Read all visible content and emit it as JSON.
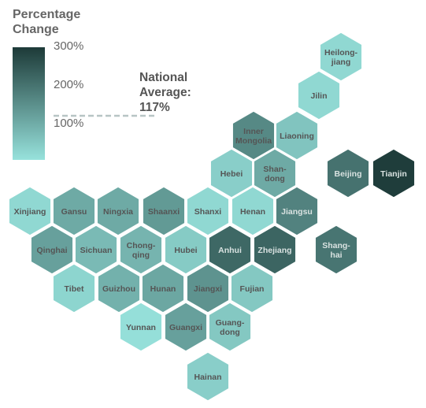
{
  "chart_data": {
    "type": "hexagonal tile map",
    "legend": {
      "title_lines": [
        "Percentage",
        "Change"
      ],
      "ticks": [
        "300%",
        "200%",
        "100%"
      ],
      "tick_values": [
        300,
        200,
        100
      ],
      "scale_min": 65,
      "scale_max": 320,
      "color_low": "#97e2dc",
      "color_high": "#1d3a38"
    },
    "national_average": {
      "label_lines": [
        "National",
        "Average:",
        "117%"
      ],
      "value": 117
    },
    "tiles": [
      {
        "label": [
          "Heilong-",
          "jiang"
        ],
        "name": "Heilongjiang",
        "value": 80
      },
      {
        "label": [
          "Jilin"
        ],
        "name": "Jilin",
        "value": 80
      },
      {
        "label": [
          "Inner",
          "Mongolia"
        ],
        "name": "Inner Mongolia",
        "value": 200
      },
      {
        "label": [
          "Liaoning"
        ],
        "name": "Liaoning",
        "value": 110
      },
      {
        "label": [
          "Hebei"
        ],
        "name": "Hebei",
        "value": 95
      },
      {
        "label": [
          "Shan-",
          "dong"
        ],
        "name": "Shandong",
        "value": 150
      },
      {
        "label": [
          "Beijing"
        ],
        "name": "Beijing",
        "value": 235
      },
      {
        "label": [
          "Tianjin"
        ],
        "name": "Tianjin",
        "value": 315
      },
      {
        "label": [
          "Xinjiang"
        ],
        "name": "Xinjiang",
        "value": 80
      },
      {
        "label": [
          "Gansu"
        ],
        "name": "Gansu",
        "value": 150
      },
      {
        "label": [
          "Ningxia"
        ],
        "name": "Ningxia",
        "value": 150
      },
      {
        "label": [
          "Shaanxi"
        ],
        "name": "Shaanxi",
        "value": 175
      },
      {
        "label": [
          "Shanxi"
        ],
        "name": "Shanxi",
        "value": 80
      },
      {
        "label": [
          "Henan"
        ],
        "name": "Henan",
        "value": 80
      },
      {
        "label": [
          "Jiangsu"
        ],
        "name": "Jiangsu",
        "value": 210
      },
      {
        "label": [
          "Qinghai"
        ],
        "name": "Qinghai",
        "value": 165
      },
      {
        "label": [
          "Sichuan"
        ],
        "name": "Sichuan",
        "value": 125
      },
      {
        "label": [
          "Chong-",
          "qing"
        ],
        "name": "Chongqing",
        "value": 135
      },
      {
        "label": [
          "Hubei"
        ],
        "name": "Hubei",
        "value": 100
      },
      {
        "label": [
          "Anhui"
        ],
        "name": "Anhui",
        "value": 250
      },
      {
        "label": [
          "Zhejiang"
        ],
        "name": "Zhejiang",
        "value": 255
      },
      {
        "label": [
          "Shang-",
          "hai"
        ],
        "name": "Shanghai",
        "value": 230
      },
      {
        "label": [
          "Tibet"
        ],
        "name": "Tibet",
        "value": 85
      },
      {
        "label": [
          "Guizhou"
        ],
        "name": "Guizhou",
        "value": 140
      },
      {
        "label": [
          "Hunan"
        ],
        "name": "Hunan",
        "value": 155
      },
      {
        "label": [
          "Jiangxi"
        ],
        "name": "Jiangxi",
        "value": 185
      },
      {
        "label": [
          "Fujian"
        ],
        "name": "Fujian",
        "value": 105
      },
      {
        "label": [
          "Yunnan"
        ],
        "name": "Yunnan",
        "value": 70
      },
      {
        "label": [
          "Guangxi"
        ],
        "name": "Guangxi",
        "value": 165
      },
      {
        "label": [
          "Guang-",
          "dong"
        ],
        "name": "Guangdong",
        "value": 105
      },
      {
        "label": [
          "Hainan"
        ],
        "name": "Hainan",
        "value": 95
      }
    ]
  }
}
